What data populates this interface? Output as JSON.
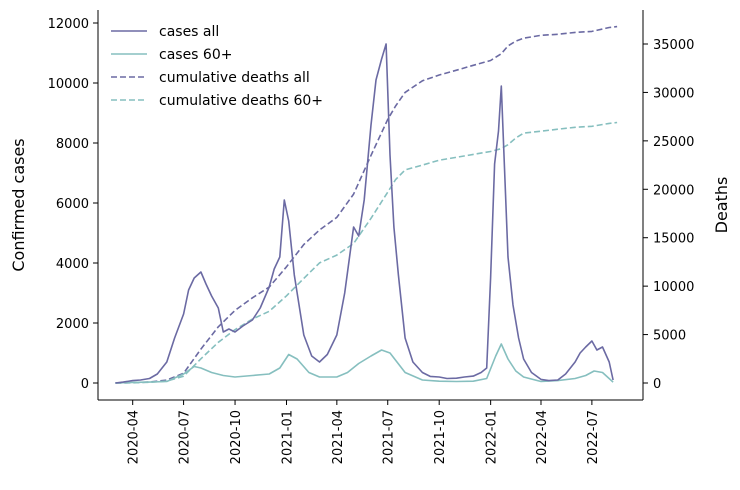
{
  "chart_data": {
    "type": "line",
    "title": "",
    "xlabel": "",
    "ylabel": "Confirmed cases",
    "y2label": "Deaths",
    "xlim": [
      "2020-02-24",
      "2022-08-31"
    ],
    "ylim": [
      0,
      12000
    ],
    "y2lim": [
      0,
      37000
    ],
    "x_ticks": [
      "2020-04",
      "2020-07",
      "2020-10",
      "2021-01",
      "2021-04",
      "2021-07",
      "2021-10",
      "2022-01",
      "2022-04",
      "2022-07"
    ],
    "y_ticks": [
      0,
      2000,
      4000,
      6000,
      8000,
      10000,
      12000
    ],
    "y2_ticks": [
      0,
      5000,
      10000,
      15000,
      20000,
      25000,
      30000,
      35000
    ],
    "grid": false,
    "legend_position": "top-left",
    "series": [
      {
        "name": "cases all",
        "axis": "left",
        "style": "solid",
        "color": "#6b6aa3",
        "x": [
          "2020-03-01",
          "2020-03-15",
          "2020-04-01",
          "2020-04-15",
          "2020-05-01",
          "2020-05-15",
          "2020-06-01",
          "2020-06-15",
          "2020-07-01",
          "2020-07-10",
          "2020-07-20",
          "2020-08-01",
          "2020-08-10",
          "2020-08-20",
          "2020-09-01",
          "2020-09-10",
          "2020-09-20",
          "2020-10-01",
          "2020-10-15",
          "2020-11-01",
          "2020-11-15",
          "2020-12-01",
          "2020-12-10",
          "2020-12-20",
          "2020-12-28",
          "2021-01-05",
          "2021-01-15",
          "2021-02-01",
          "2021-02-15",
          "2021-03-01",
          "2021-03-15",
          "2021-04-01",
          "2021-04-15",
          "2021-05-01",
          "2021-05-10",
          "2021-05-20",
          "2021-06-01",
          "2021-06-10",
          "2021-06-20",
          "2021-06-28",
          "2021-07-05",
          "2021-07-12",
          "2021-07-20",
          "2021-08-01",
          "2021-08-15",
          "2021-09-01",
          "2021-09-15",
          "2021-10-01",
          "2021-10-15",
          "2021-11-01",
          "2021-11-15",
          "2021-12-01",
          "2021-12-15",
          "2021-12-25",
          "2022-01-01",
          "2022-01-08",
          "2022-01-15",
          "2022-01-20",
          "2022-01-25",
          "2022-02-01",
          "2022-02-10",
          "2022-02-20",
          "2022-03-01",
          "2022-03-15",
          "2022-04-01",
          "2022-04-15",
          "2022-05-01",
          "2022-05-15",
          "2022-06-01",
          "2022-06-10",
          "2022-06-20",
          "2022-07-01",
          "2022-07-10",
          "2022-07-20",
          "2022-08-01",
          "2022-08-08"
        ],
        "values": [
          0,
          30,
          80,
          100,
          150,
          300,
          700,
          1500,
          2300,
          3100,
          3500,
          3700,
          3300,
          2900,
          2500,
          1700,
          1800,
          1700,
          1900,
          2100,
          2500,
          3200,
          3800,
          4200,
          6100,
          5400,
          3600,
          1600,
          900,
          700,
          950,
          1600,
          3000,
          5200,
          4900,
          6100,
          8600,
          10100,
          10800,
          11300,
          7600,
          5200,
          3600,
          1500,
          700,
          350,
          220,
          200,
          150,
          160,
          200,
          230,
          350,
          500,
          3500,
          7300,
          8400,
          9900,
          7500,
          4200,
          2600,
          1500,
          800,
          350,
          120,
          80,
          100,
          300,
          700,
          1000,
          1200,
          1400,
          1100,
          1200,
          700,
          100
        ]
      },
      {
        "name": "cases 60+",
        "axis": "left",
        "style": "solid",
        "color": "#86bfbf",
        "x": [
          "2020-03-01",
          "2020-04-01",
          "2020-05-01",
          "2020-06-01",
          "2020-07-01",
          "2020-07-20",
          "2020-08-01",
          "2020-08-20",
          "2020-09-10",
          "2020-10-01",
          "2020-11-01",
          "2020-12-01",
          "2020-12-20",
          "2021-01-05",
          "2021-01-20",
          "2021-02-10",
          "2021-03-01",
          "2021-04-01",
          "2021-04-20",
          "2021-05-10",
          "2021-06-01",
          "2021-06-20",
          "2021-07-05",
          "2021-08-01",
          "2021-09-01",
          "2021-10-01",
          "2021-11-01",
          "2021-12-01",
          "2021-12-25",
          "2022-01-10",
          "2022-01-20",
          "2022-02-01",
          "2022-02-15",
          "2022-03-01",
          "2022-04-01",
          "2022-05-01",
          "2022-06-01",
          "2022-06-20",
          "2022-07-05",
          "2022-07-20",
          "2022-08-08"
        ],
        "values": [
          0,
          20,
          30,
          50,
          300,
          550,
          500,
          350,
          250,
          200,
          250,
          300,
          500,
          950,
          800,
          350,
          200,
          200,
          350,
          650,
          900,
          1100,
          1000,
          350,
          100,
          60,
          50,
          60,
          150,
          900,
          1300,
          800,
          400,
          200,
          50,
          80,
          150,
          250,
          400,
          350,
          30
        ]
      },
      {
        "name": "cumulative deaths all",
        "axis": "right",
        "style": "dashed",
        "color": "#6b6aa3",
        "x": [
          "2020-03-01",
          "2020-04-01",
          "2020-05-01",
          "2020-06-01",
          "2020-07-01",
          "2020-08-01",
          "2020-09-01",
          "2020-10-01",
          "2020-11-01",
          "2020-12-01",
          "2021-01-01",
          "2021-02-01",
          "2021-03-01",
          "2021-04-01",
          "2021-05-01",
          "2021-06-01",
          "2021-07-01",
          "2021-07-15",
          "2021-08-01",
          "2021-09-01",
          "2021-10-01",
          "2021-11-01",
          "2021-12-01",
          "2022-01-01",
          "2022-01-20",
          "2022-02-01",
          "2022-02-15",
          "2022-03-01",
          "2022-04-01",
          "2022-05-01",
          "2022-06-01",
          "2022-07-01",
          "2022-08-01",
          "2022-08-15"
        ],
        "values": [
          0,
          30,
          100,
          300,
          1000,
          3500,
          5800,
          7500,
          8800,
          9900,
          12000,
          14300,
          15800,
          17100,
          19500,
          23500,
          27200,
          28600,
          30000,
          31200,
          31800,
          32300,
          32800,
          33300,
          34000,
          34800,
          35300,
          35600,
          35900,
          36000,
          36200,
          36300,
          36700,
          36800
        ]
      },
      {
        "name": "cumulative deaths 60+",
        "axis": "right",
        "style": "dashed",
        "color": "#86bfbf",
        "x": [
          "2020-03-01",
          "2020-04-01",
          "2020-05-01",
          "2020-06-01",
          "2020-07-01",
          "2020-08-01",
          "2020-09-01",
          "2020-10-01",
          "2020-11-01",
          "2020-12-01",
          "2021-01-01",
          "2021-02-01",
          "2021-03-01",
          "2021-04-01",
          "2021-05-01",
          "2021-06-01",
          "2021-07-01",
          "2021-07-15",
          "2021-08-01",
          "2021-09-01",
          "2021-10-01",
          "2021-11-01",
          "2021-12-01",
          "2022-01-01",
          "2022-01-20",
          "2022-02-01",
          "2022-02-15",
          "2022-03-01",
          "2022-04-01",
          "2022-05-01",
          "2022-06-01",
          "2022-07-01",
          "2022-08-01",
          "2022-08-15"
        ],
        "values": [
          0,
          20,
          70,
          200,
          700,
          2500,
          4200,
          5500,
          6600,
          7400,
          9000,
          10800,
          12400,
          13200,
          14400,
          17000,
          19700,
          21000,
          22000,
          22500,
          23000,
          23300,
          23600,
          23900,
          24200,
          24600,
          25300,
          25800,
          26000,
          26200,
          26400,
          26500,
          26800,
          26900
        ]
      }
    ]
  }
}
